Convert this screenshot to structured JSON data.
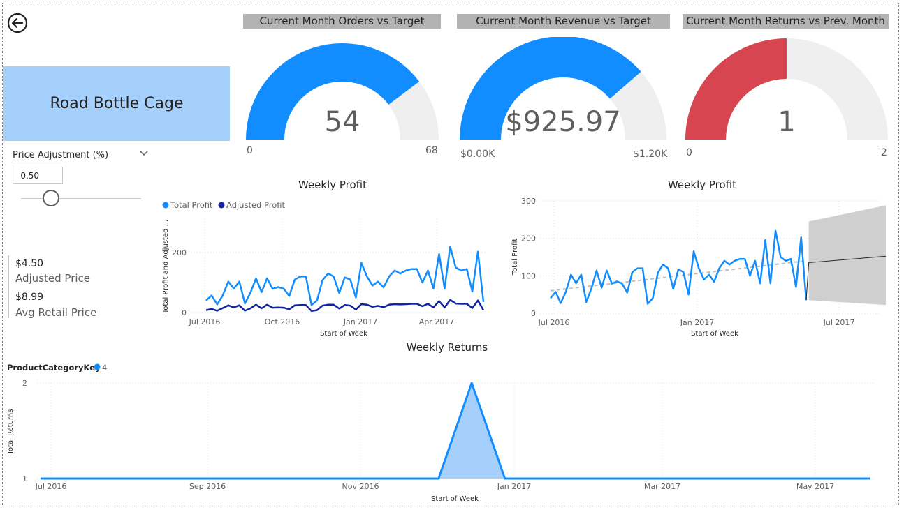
{
  "product": {
    "name": "Road Bottle Cage"
  },
  "gauges": [
    {
      "title": "Current Month Orders vs Target",
      "value_label": "54",
      "min_label": "0",
      "max_label": "68",
      "value": 54,
      "min": 0,
      "max": 68,
      "color": "#118dff"
    },
    {
      "title": "Current Month Revenue vs Target",
      "value_label": "$925.97",
      "min_label": "$0.00K",
      "max_label": "$1.20K",
      "value": 925.97,
      "min": 0,
      "max": 1200,
      "color": "#118dff"
    },
    {
      "title": "Current Month Returns vs Prev. Month",
      "value_label": "1",
      "min_label": "0",
      "max_label": "2",
      "value": 1,
      "min": 0,
      "max": 2,
      "color": "#d64550"
    }
  ],
  "slicer": {
    "title": "Price Adjustment (%)",
    "value": "-0.50",
    "position": 0.25
  },
  "kpis": {
    "adjusted_price": {
      "value": "$4.50",
      "label": "Adjusted Price"
    },
    "avg_retail_price": {
      "value": "$8.99",
      "label": "Avg Retail Price"
    }
  },
  "chart_data": [
    {
      "type": "line",
      "title": "Weekly Profit",
      "xlabel": "Start of Week",
      "ylabel": "Total Profit and Adjusted ...",
      "legend": [
        "Total Profit",
        "Adjusted Profit"
      ],
      "legend_position": "top-left",
      "x_ticks": [
        "Jul 2016",
        "Oct 2016",
        "Jan 2017",
        "Apr 2017"
      ],
      "y_ticks": [
        0,
        200
      ],
      "ylim": [
        0,
        300
      ],
      "series": [
        {
          "name": "Total Profit",
          "color": "#118dff",
          "values": [
            40,
            57,
            27,
            57,
            103,
            80,
            103,
            30,
            66,
            114,
            68,
            114,
            79,
            85,
            79,
            55,
            110,
            120,
            120,
            25,
            40,
            108,
            130,
            120,
            65,
            117,
            110,
            50,
            165,
            120,
            90,
            103,
            84,
            120,
            140,
            130,
            140,
            145,
            145,
            100,
            140,
            80,
            195,
            80,
            220,
            150,
            140,
            145,
            70,
            203,
            35
          ]
        },
        {
          "name": "Adjusted Profit",
          "color": "#12239e",
          "values": [
            8,
            12,
            6,
            15,
            24,
            17,
            24,
            6,
            14,
            26,
            14,
            26,
            16,
            17,
            16,
            11,
            24,
            25,
            25,
            5,
            8,
            23,
            26,
            26,
            13,
            25,
            23,
            10,
            28,
            26,
            19,
            22,
            18,
            26,
            28,
            27,
            28,
            29,
            29,
            21,
            29,
            17,
            38,
            17,
            42,
            30,
            29,
            29,
            15,
            40,
            8
          ]
        }
      ]
    },
    {
      "type": "line",
      "title": "Weekly Profit",
      "xlabel": "Start of Week",
      "ylabel": "Total Profit",
      "x_ticks": [
        "Jul 2016",
        "Jan 2017",
        "Jul 2017"
      ],
      "y_ticks": [
        0,
        100,
        200,
        300
      ],
      "ylim": [
        0,
        300
      ],
      "series": [
        {
          "name": "Total Profit",
          "color": "#118dff",
          "values": [
            40,
            57,
            27,
            57,
            103,
            80,
            103,
            30,
            66,
            114,
            68,
            114,
            79,
            85,
            79,
            55,
            110,
            120,
            120,
            25,
            40,
            108,
            130,
            120,
            65,
            117,
            110,
            50,
            165,
            120,
            90,
            103,
            84,
            120,
            140,
            130,
            140,
            145,
            145,
            100,
            140,
            80,
            195,
            80,
            220,
            150,
            140,
            145,
            70,
            203,
            35
          ]
        }
      ],
      "trend": {
        "start": 60,
        "end": 140
      },
      "forecast": {
        "start_week": 51,
        "end_week": 68,
        "values": [
          135,
          155
        ],
        "upper": [
          245,
          295
        ],
        "lower": [
          35,
          20
        ]
      }
    },
    {
      "type": "area",
      "title": "Weekly Returns",
      "xlabel": "Start of Week",
      "ylabel": "Total Returns",
      "legend_title": "ProductCategoryKey",
      "legend": [
        "4"
      ],
      "x_ticks": [
        "Jul 2016",
        "Sep 2016",
        "Nov 2016",
        "Jan 2017",
        "Mar 2017",
        "May 2017"
      ],
      "y_ticks": [
        1,
        2
      ],
      "ylim": [
        1,
        2
      ],
      "points": [
        {
          "x": "2016-06-27",
          "y": 1
        },
        {
          "x": "2016-12-12",
          "y": 1
        },
        {
          "x": "2016-12-26",
          "y": 2
        },
        {
          "x": "2017-01-09",
          "y": 1
        },
        {
          "x": "2017-06-12",
          "y": 1
        }
      ]
    }
  ]
}
